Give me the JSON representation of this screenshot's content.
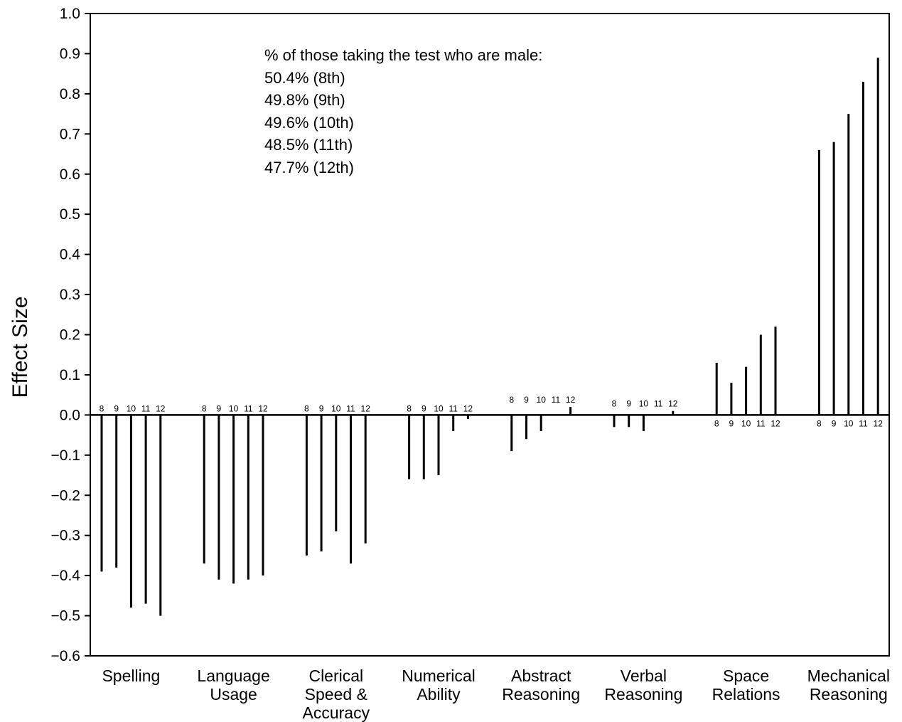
{
  "chart_data": {
    "type": "bar",
    "ylabel": "Effect Size",
    "xlabel": "",
    "ylim": [
      -0.6,
      1.0
    ],
    "yticks": [
      "1.0",
      "0.9",
      "0.8",
      "0.7",
      "0.6",
      "0.5",
      "0.4",
      "0.3",
      "0.2",
      "0.1",
      "0.0",
      "−0.1",
      "−0.2",
      "−0.3",
      "−0.4",
      "−0.5",
      "−0.6"
    ],
    "grades": [
      "8",
      "9",
      "10",
      "11",
      "12"
    ],
    "grid": false,
    "legend": "none",
    "annotation": {
      "heading": "% of those taking the test who are male:",
      "lines": [
        "50.4% (8th)",
        "49.8% (9th)",
        "49.6% (10th)",
        "48.5% (11th)",
        "47.7% (12th)"
      ]
    },
    "groups": [
      {
        "name": "Spelling",
        "label_lines": [
          "Spelling"
        ],
        "values": [
          -0.39,
          -0.38,
          -0.48,
          -0.47,
          -0.5
        ]
      },
      {
        "name": "Language Usage",
        "label_lines": [
          "Language",
          "Usage"
        ],
        "values": [
          -0.37,
          -0.41,
          -0.42,
          -0.41,
          -0.4
        ]
      },
      {
        "name": "Clerical Speed & Accuracy",
        "label_lines": [
          "Clerical",
          "Speed &",
          "Accuracy"
        ],
        "values": [
          -0.35,
          -0.34,
          -0.29,
          -0.37,
          -0.32
        ]
      },
      {
        "name": "Numerical Ability",
        "label_lines": [
          "Numerical",
          "Ability"
        ],
        "values": [
          -0.16,
          -0.16,
          -0.15,
          -0.04,
          -0.01
        ]
      },
      {
        "name": "Abstract Reasoning",
        "label_lines": [
          "Abstract",
          "Reasoning"
        ],
        "values": [
          -0.09,
          -0.06,
          -0.04,
          0.0,
          0.02
        ]
      },
      {
        "name": "Verbal Reasoning",
        "label_lines": [
          "Verbal",
          "Reasoning"
        ],
        "values": [
          -0.03,
          -0.03,
          -0.04,
          0.0,
          0.01
        ]
      },
      {
        "name": "Space Relations",
        "label_lines": [
          "Space",
          "Relations"
        ],
        "values": [
          0.13,
          0.08,
          0.12,
          0.2,
          0.22
        ]
      },
      {
        "name": "Mechanical Reasoning",
        "label_lines": [
          "Mechanical",
          "Reasoning"
        ],
        "values": [
          0.66,
          0.68,
          0.75,
          0.83,
          0.89
        ]
      }
    ]
  }
}
